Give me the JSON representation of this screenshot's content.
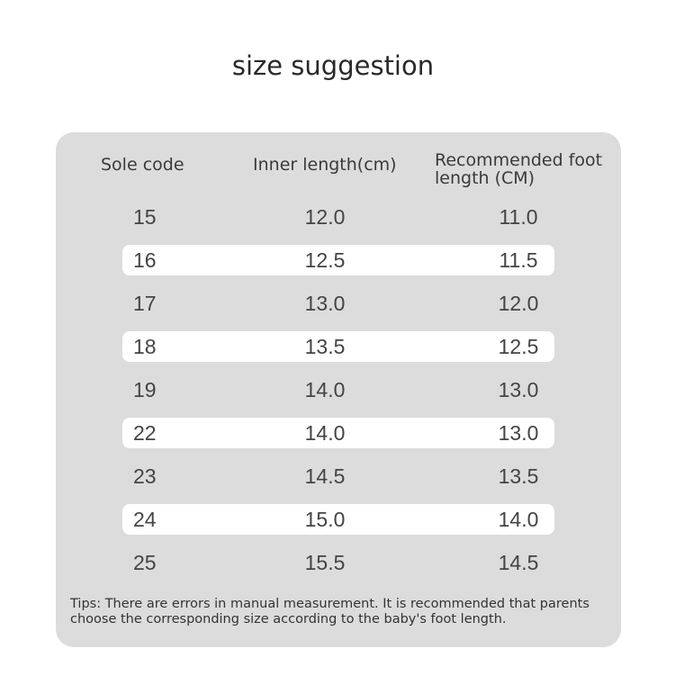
{
  "title": "size suggestion",
  "table": {
    "headers": [
      "Sole code",
      "Inner length(cm)",
      "Recommended foot length (CM)"
    ],
    "rows": [
      [
        "15",
        "12.0",
        "11.0"
      ],
      [
        "16",
        "12.5",
        "11.5"
      ],
      [
        "17",
        "13.0",
        "12.0"
      ],
      [
        "18",
        "13.5",
        "12.5"
      ],
      [
        "19",
        "14.0",
        "13.0"
      ],
      [
        "22",
        "14.0",
        "13.0"
      ],
      [
        "23",
        "14.5",
        "13.5"
      ],
      [
        "24",
        "15.0",
        "14.0"
      ],
      [
        "25",
        "15.5",
        "14.5"
      ]
    ]
  },
  "tips": "Tips: There are errors in manual measurement. It is recommended that parents choose the corresponding size according to the baby's foot length.",
  "colors": {
    "panel": "#dcdcdd",
    "highlight_row": "#ffffff",
    "text": "#333333"
  }
}
